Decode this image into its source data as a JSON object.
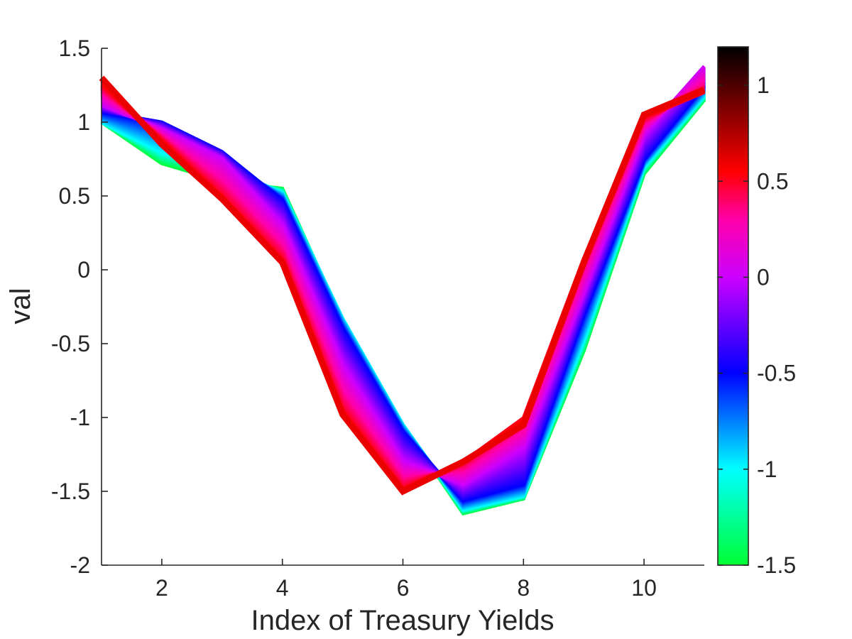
{
  "chart_data": {
    "type": "line",
    "title": "",
    "xlabel": "Index of Treasury Yields",
    "ylabel": "val",
    "xlim": [
      1,
      11
    ],
    "ylim": [
      -2,
      1.5
    ],
    "xticks": [
      2,
      4,
      6,
      8,
      10
    ],
    "xtick_labels": [
      "2",
      "4",
      "6",
      "8",
      "10"
    ],
    "yticks": [
      1.5,
      1,
      0.5,
      0,
      -0.5,
      -1,
      -1.5,
      -2
    ],
    "ytick_labels": [
      "1.5",
      "1",
      "0.5",
      "0",
      "-0.5",
      "-1",
      "-1.5",
      "-2"
    ],
    "grid": false,
    "legend": "none",
    "x": [
      1,
      2,
      3,
      4,
      5,
      6,
      7,
      8,
      9,
      10,
      11
    ],
    "series": [
      {
        "color_value": -1.5,
        "values": [
          1.0,
          0.72,
          0.6,
          0.55,
          -0.35,
          -1.05,
          -1.65,
          -1.55,
          -0.55,
          0.65,
          1.15
        ]
      },
      {
        "color_value": -1.0,
        "values": [
          1.0,
          0.8,
          0.7,
          0.52,
          -0.33,
          -1.05,
          -1.62,
          -1.53,
          -0.47,
          0.7,
          1.18
        ]
      },
      {
        "color_value": -0.5,
        "values": [
          1.07,
          1.0,
          0.8,
          0.47,
          -0.4,
          -1.1,
          -1.56,
          -1.45,
          -0.3,
          0.75,
          1.25
        ]
      },
      {
        "color_value": 0.0,
        "values": [
          1.12,
          0.95,
          0.75,
          0.3,
          -0.65,
          -1.3,
          -1.45,
          -1.2,
          -0.15,
          0.92,
          1.38
        ]
      },
      {
        "color_value": 0.5,
        "values": [
          1.25,
          0.88,
          0.5,
          0.07,
          -0.95,
          -1.48,
          -1.3,
          -1.0,
          0.08,
          1.03,
          1.2
        ]
      },
      {
        "color_value": 0.6,
        "values": [
          1.3,
          0.85,
          0.48,
          0.05,
          -0.98,
          -1.5,
          -1.3,
          -1.05,
          0.05,
          1.05,
          1.22
        ]
      }
    ],
    "colorbar": {
      "range": [
        -1.5,
        1.2
      ],
      "ticks": [
        1,
        0.5,
        0,
        -0.5,
        -1,
        -1.5
      ],
      "tick_labels": [
        "1",
        "0.5",
        "0",
        "-0.5",
        "-1",
        "-1.5"
      ],
      "colors": [
        {
          "value": -1.5,
          "color": "#00ff33"
        },
        {
          "value": -1.0,
          "color": "#00ffff"
        },
        {
          "value": -0.5,
          "color": "#0000ff"
        },
        {
          "value": 0.0,
          "color": "#cc00ff"
        },
        {
          "value": 0.3,
          "color": "#ff00aa"
        },
        {
          "value": 0.55,
          "color": "#ff0000"
        },
        {
          "value": 1.2,
          "color": "#000000"
        }
      ]
    }
  }
}
